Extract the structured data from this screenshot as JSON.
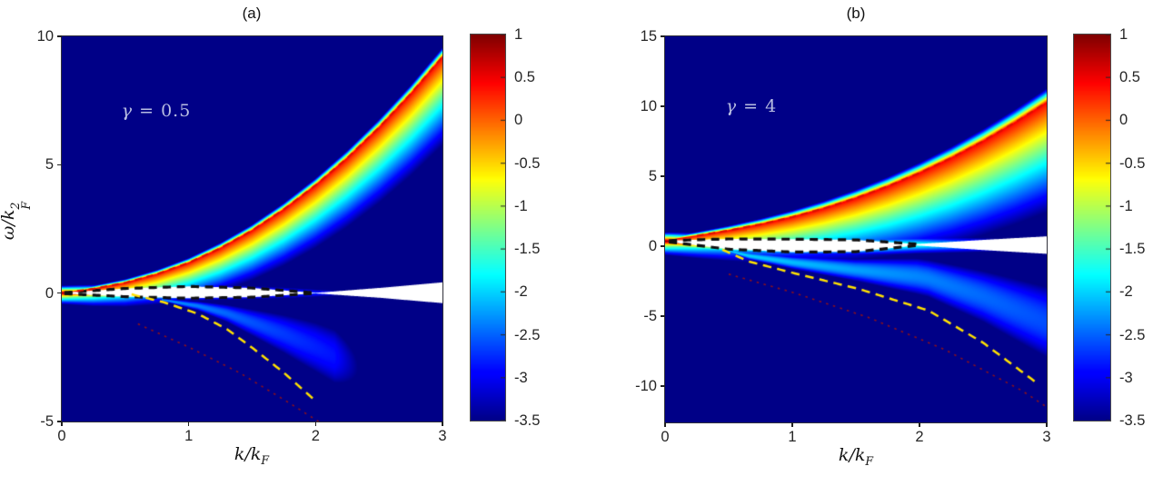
{
  "figure": {
    "background": "#ffffff"
  },
  "labels": {
    "omega": "ω",
    "k": "k",
    "F": "F",
    "two": "2",
    "slash": "/"
  },
  "chart_data": [
    {
      "type": "heatmap",
      "panel_label": "(a)",
      "annotation": {
        "symbol": "γ",
        "rest": " = 0.5"
      },
      "xlabel_text": "k/k_F",
      "ylabel_text": "ω/k_F^2",
      "xlim": [
        0,
        3
      ],
      "ylim": [
        -5,
        10
      ],
      "xticks": [
        "0",
        "1",
        "2",
        "3"
      ],
      "yticks": [
        "10",
        "5",
        "0",
        "-5"
      ],
      "colormap": "jet",
      "colorbar_range": [
        -3.5,
        1
      ],
      "colorbar_ticks": [
        "1",
        "0.5",
        "0",
        "-0.5",
        "-1",
        "-1.5",
        "-2",
        "-2.5",
        "-3",
        "-3.5"
      ],
      "upper_branch": [
        [
          0,
          0
        ],
        [
          0.25,
          0.17
        ],
        [
          0.5,
          0.4
        ],
        [
          0.75,
          0.74
        ],
        [
          1,
          1.18
        ],
        [
          1.25,
          1.75
        ],
        [
          1.5,
          2.44
        ],
        [
          1.75,
          3.26
        ],
        [
          2,
          4.2
        ],
        [
          2.25,
          5.26
        ],
        [
          2.5,
          6.45
        ],
        [
          2.75,
          7.76
        ],
        [
          3,
          9.2
        ]
      ],
      "lower_branch": [
        [
          0.55,
          -0.05
        ],
        [
          0.8,
          -0.35
        ],
        [
          1.07,
          -0.8
        ],
        [
          1.3,
          -1.4
        ],
        [
          1.52,
          -2.2
        ],
        [
          1.75,
          -3.1
        ],
        [
          2.0,
          -4.2
        ]
      ],
      "faint_branch": [
        [
          0.6,
          -1.2
        ],
        [
          1.0,
          -2.1
        ],
        [
          1.4,
          -3.1
        ],
        [
          1.8,
          -4.3
        ],
        [
          2.15,
          -5.4
        ]
      ],
      "lens": {
        "pinch_k": 2.0,
        "upper": [
          [
            0.02,
            0.02
          ],
          [
            0.5,
            0.18
          ],
          [
            1,
            0.26
          ],
          [
            1.5,
            0.2
          ],
          [
            2,
            0.01
          ],
          [
            2.5,
            0.2
          ],
          [
            3,
            0.42
          ]
        ],
        "lower": [
          [
            0.02,
            -0.02
          ],
          [
            0.5,
            -0.14
          ],
          [
            1,
            -0.2
          ],
          [
            1.5,
            -0.16
          ],
          [
            2,
            -0.01
          ],
          [
            2.5,
            -0.18
          ],
          [
            3,
            -0.39
          ]
        ]
      },
      "render": {
        "peak_log": 0.45,
        "tail_above": [
          0.12,
          0.1
        ],
        "tail_below": [
          0.5,
          1.15
        ],
        "glow_peak": [
          0.95,
          -1.8
        ],
        "glow_width": [
          0.3,
          0.25
        ],
        "band_peak": [
          -1.9,
          -0.45
        ],
        "band_fade_k": 2.15,
        "ridge_dash_start_k": 0.12
      },
      "overlay_colors": {
        "ridge_dash": "#dd1000",
        "lower_dash": "#ffe100",
        "lens_dash": "#101010",
        "faint_dot": "#a51408",
        "lens_fill": "#ffffff"
      }
    },
    {
      "type": "heatmap",
      "panel_label": "(b)",
      "annotation": {
        "symbol": "γ",
        "rest": " = 4"
      },
      "xlabel_text": "k/k_F",
      "ylabel_text": "",
      "xlim": [
        0,
        3
      ],
      "ylim": [
        -12.6,
        15
      ],
      "xticks": [
        "0",
        "1",
        "2",
        "3"
      ],
      "yticks": [
        "15",
        "10",
        "5",
        "0",
        "-5",
        "-10"
      ],
      "colormap": "jet",
      "colorbar_range": [
        -3.5,
        1
      ],
      "colorbar_ticks": [
        "1",
        "0.5",
        "0",
        "-0.5",
        "-1",
        "-1.5",
        "-2",
        "-2.5",
        "-3",
        "-3.5"
      ],
      "upper_branch": [
        [
          0,
          0.4
        ],
        [
          0.25,
          0.74
        ],
        [
          0.5,
          1.12
        ],
        [
          0.75,
          1.56
        ],
        [
          1,
          2.08
        ],
        [
          1.25,
          2.7
        ],
        [
          1.5,
          3.43
        ],
        [
          1.75,
          4.27
        ],
        [
          2,
          5.23
        ],
        [
          2.25,
          6.3
        ],
        [
          2.5,
          7.5
        ],
        [
          2.75,
          8.83
        ],
        [
          3,
          10.27
        ]
      ],
      "lower_branch": [
        [
          0.45,
          -0.25
        ],
        [
          0.66,
          -1.1
        ],
        [
          1.0,
          -1.9
        ],
        [
          1.52,
          -3.05
        ],
        [
          2.07,
          -4.6
        ],
        [
          2.5,
          -6.9
        ],
        [
          2.94,
          -9.9
        ]
      ],
      "faint_branch": [
        [
          0.5,
          -2.0
        ],
        [
          1.0,
          -3.3
        ],
        [
          1.6,
          -5.1
        ],
        [
          2.2,
          -7.4
        ],
        [
          2.8,
          -10.3
        ],
        [
          3.0,
          -11.5
        ]
      ],
      "lens": {
        "pinch_k": 1.98,
        "upper": [
          [
            0.03,
            0.4
          ],
          [
            0.5,
            0.52
          ],
          [
            1,
            0.5
          ],
          [
            1.5,
            0.45
          ],
          [
            1.98,
            0.15
          ],
          [
            2.5,
            0.45
          ],
          [
            3,
            0.7
          ]
        ],
        "lower": [
          [
            0.03,
            0.3
          ],
          [
            0.5,
            -0.22
          ],
          [
            1,
            -0.42
          ],
          [
            1.5,
            -0.4
          ],
          [
            1.98,
            0.05
          ],
          [
            2.5,
            -0.28
          ],
          [
            3,
            -0.55
          ]
        ]
      },
      "render": {
        "peak_log": 0.45,
        "tail_above": [
          0.25,
          0.3
        ],
        "tail_below": [
          1.2,
          2.6
        ],
        "glow_peak": [
          1.0,
          -1.25
        ],
        "glow_width": [
          0.65,
          0.4
        ],
        "band_peak": [
          -1.85,
          -0.25
        ],
        "band_fade_k": 3.2,
        "ridge_dash_start_k": 0.25
      },
      "overlay_colors": {
        "ridge_dash": "#dd1000",
        "lower_dash": "#ffe100",
        "lens_dash": "#101010",
        "faint_dot": "#a51408",
        "lens_fill": "#ffffff"
      }
    }
  ]
}
